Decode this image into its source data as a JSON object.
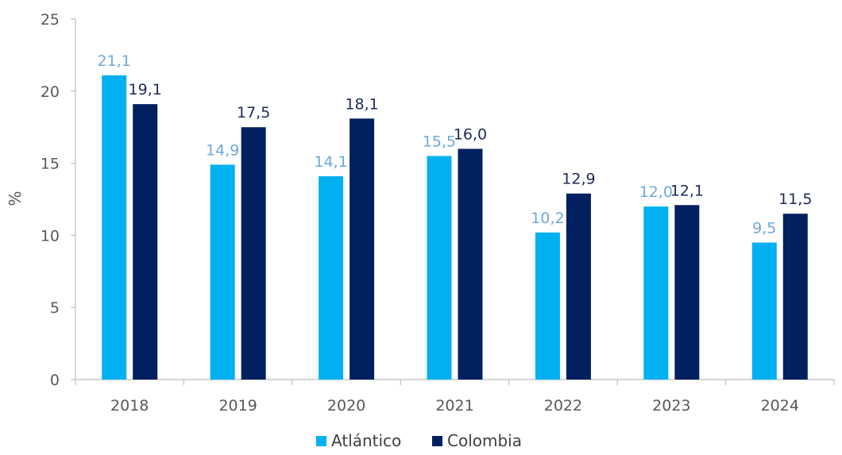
{
  "chart_data": {
    "type": "bar",
    "categories": [
      "2018",
      "2019",
      "2020",
      "2021",
      "2022",
      "2023",
      "2024"
    ],
    "series": [
      {
        "name": "Atlántico",
        "values": [
          21.1,
          14.9,
          14.1,
          15.5,
          10.2,
          12.0,
          9.5
        ],
        "labels": [
          "21,1",
          "14,9",
          "14,1",
          "15,5",
          "10,2",
          "12,0",
          "9,5"
        ],
        "color": "#00B0F0",
        "label_color": "#6FA8DC"
      },
      {
        "name": "Colombia",
        "values": [
          19.1,
          17.5,
          18.1,
          16.0,
          12.9,
          12.1,
          11.5
        ],
        "labels": [
          "19,1",
          "17,5",
          "18,1",
          "16,0",
          "12,9",
          "12,1",
          "11,5"
        ],
        "color": "#002060",
        "label_color": "#1F2A5A"
      }
    ],
    "ylabel": "%",
    "ylim": [
      0,
      25
    ],
    "yticks": [
      0,
      5,
      10,
      15,
      20,
      25
    ],
    "grid": false,
    "legend_position": "bottom"
  }
}
